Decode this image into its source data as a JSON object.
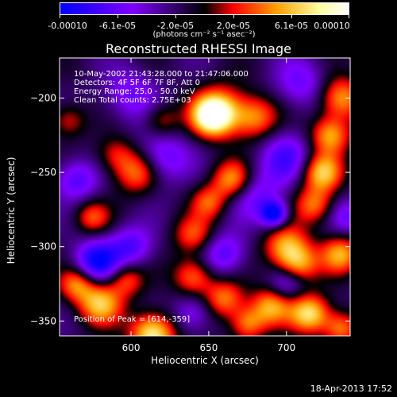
{
  "chart_data": {
    "type": "heatmap",
    "title": "Reconstructed RHESSI Image",
    "xlabel": "Heliocentric X (arcsec)",
    "ylabel": "Heliocentric Y (arcsec)",
    "xlim": [
      554,
      741
    ],
    "ylim": [
      -360,
      -173
    ],
    "x_ticks": [
      600,
      650,
      700
    ],
    "y_ticks": [
      -200,
      -250,
      -300,
      -350
    ],
    "info_lines": [
      "10-May-2002 21:43:28.000 to 21:47:06.000",
      "Detectors: 4F 5F 6F 7F 8F, Att 0",
      "Energy Range: 25.0 - 50.0 keV",
      "Clean     Total counts: 2.75E+03"
    ],
    "peak_label": "Position of Peak = [614,-359]",
    "colorbar": {
      "min": -0.0001,
      "max": 0.0001,
      "tick_labels": [
        "-0.00010",
        "-6.1e-05",
        "-2.0e-05",
        "2.0e-05",
        "6.1e-05",
        "0.00010"
      ],
      "unit_label": "(photons cm⁻² s⁻¹ asec⁻²)",
      "colors": [
        "#0000ff",
        "#7f00ff",
        "#000000",
        "#ff0000",
        "#ffa000",
        "#ffffa0",
        "#ffffff"
      ]
    },
    "blobs": [
      {
        "x": 652,
        "y": -212,
        "a": 1.0,
        "s": 9
      },
      {
        "x": 658,
        "y": -208,
        "a": 0.6,
        "s": 12
      },
      {
        "x": 680,
        "y": -213,
        "a": 0.6,
        "s": 10
      },
      {
        "x": 620,
        "y": -215,
        "a": 0.4,
        "s": 8
      },
      {
        "x": 735,
        "y": -200,
        "a": 0.7,
        "s": 10
      },
      {
        "x": 728,
        "y": -225,
        "a": 0.7,
        "s": 9
      },
      {
        "x": 723,
        "y": -250,
        "a": 0.8,
        "s": 9
      },
      {
        "x": 718,
        "y": -272,
        "a": 0.6,
        "s": 9
      },
      {
        "x": 665,
        "y": -255,
        "a": 0.7,
        "s": 9
      },
      {
        "x": 650,
        "y": -270,
        "a": 0.5,
        "s": 8
      },
      {
        "x": 604,
        "y": -250,
        "a": 0.6,
        "s": 10
      },
      {
        "x": 590,
        "y": -238,
        "a": 0.4,
        "s": 9
      },
      {
        "x": 575,
        "y": -280,
        "a": 0.5,
        "s": 8
      },
      {
        "x": 640,
        "y": -292,
        "a": 0.5,
        "s": 9
      },
      {
        "x": 700,
        "y": -300,
        "a": 0.7,
        "s": 10
      },
      {
        "x": 708,
        "y": -312,
        "a": 0.6,
        "s": 9
      },
      {
        "x": 735,
        "y": -305,
        "a": 0.7,
        "s": 9
      },
      {
        "x": 597,
        "y": -322,
        "a": 0.5,
        "s": 8
      },
      {
        "x": 640,
        "y": -320,
        "a": 0.6,
        "s": 9
      },
      {
        "x": 660,
        "y": -335,
        "a": 0.6,
        "s": 9
      },
      {
        "x": 580,
        "y": -338,
        "a": 0.8,
        "s": 10
      },
      {
        "x": 565,
        "y": -325,
        "a": 0.6,
        "s": 8
      },
      {
        "x": 690,
        "y": -340,
        "a": 0.7,
        "s": 9
      },
      {
        "x": 715,
        "y": -345,
        "a": 0.9,
        "s": 9
      },
      {
        "x": 675,
        "y": -352,
        "a": 0.6,
        "s": 8
      },
      {
        "x": 614,
        "y": -359,
        "a": 1.0,
        "s": 10
      },
      {
        "x": 735,
        "y": -355,
        "a": 0.6,
        "s": 8
      },
      {
        "x": 560,
        "y": -215,
        "a": 0.4,
        "s": 8
      },
      {
        "x": 600,
        "y": -198,
        "a": -0.4,
        "s": 12
      },
      {
        "x": 620,
        "y": -240,
        "a": -0.5,
        "s": 12
      },
      {
        "x": 600,
        "y": -300,
        "a": -0.5,
        "s": 10
      },
      {
        "x": 578,
        "y": -310,
        "a": -0.8,
        "s": 10
      },
      {
        "x": 692,
        "y": -278,
        "a": -0.9,
        "s": 6
      },
      {
        "x": 680,
        "y": -265,
        "a": -0.4,
        "s": 12
      },
      {
        "x": 700,
        "y": -240,
        "a": -0.5,
        "s": 12
      },
      {
        "x": 710,
        "y": -190,
        "a": -0.4,
        "s": 12
      },
      {
        "x": 640,
        "y": -345,
        "a": -0.4,
        "s": 9
      },
      {
        "x": 660,
        "y": -305,
        "a": -0.5,
        "s": 10
      },
      {
        "x": 565,
        "y": -255,
        "a": -0.5,
        "s": 10
      },
      {
        "x": 700,
        "y": -325,
        "a": -0.4,
        "s": 8
      },
      {
        "x": 740,
        "y": -280,
        "a": -0.4,
        "s": 9
      }
    ]
  },
  "footer": {
    "date": "18-Apr-2013 17:52"
  }
}
